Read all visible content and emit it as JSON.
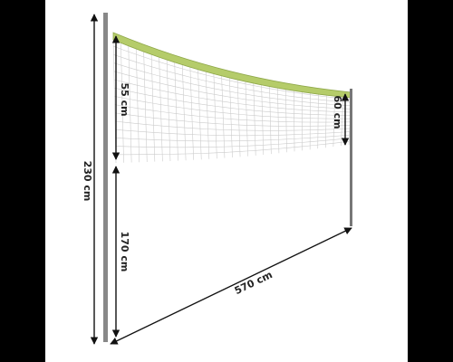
{
  "dimensions": {
    "total_height": "230 cm",
    "net_height_left": "55 cm",
    "net_height_right": "60 cm",
    "bottom_clearance": "170 cm",
    "net_length": "570 cm"
  }
}
